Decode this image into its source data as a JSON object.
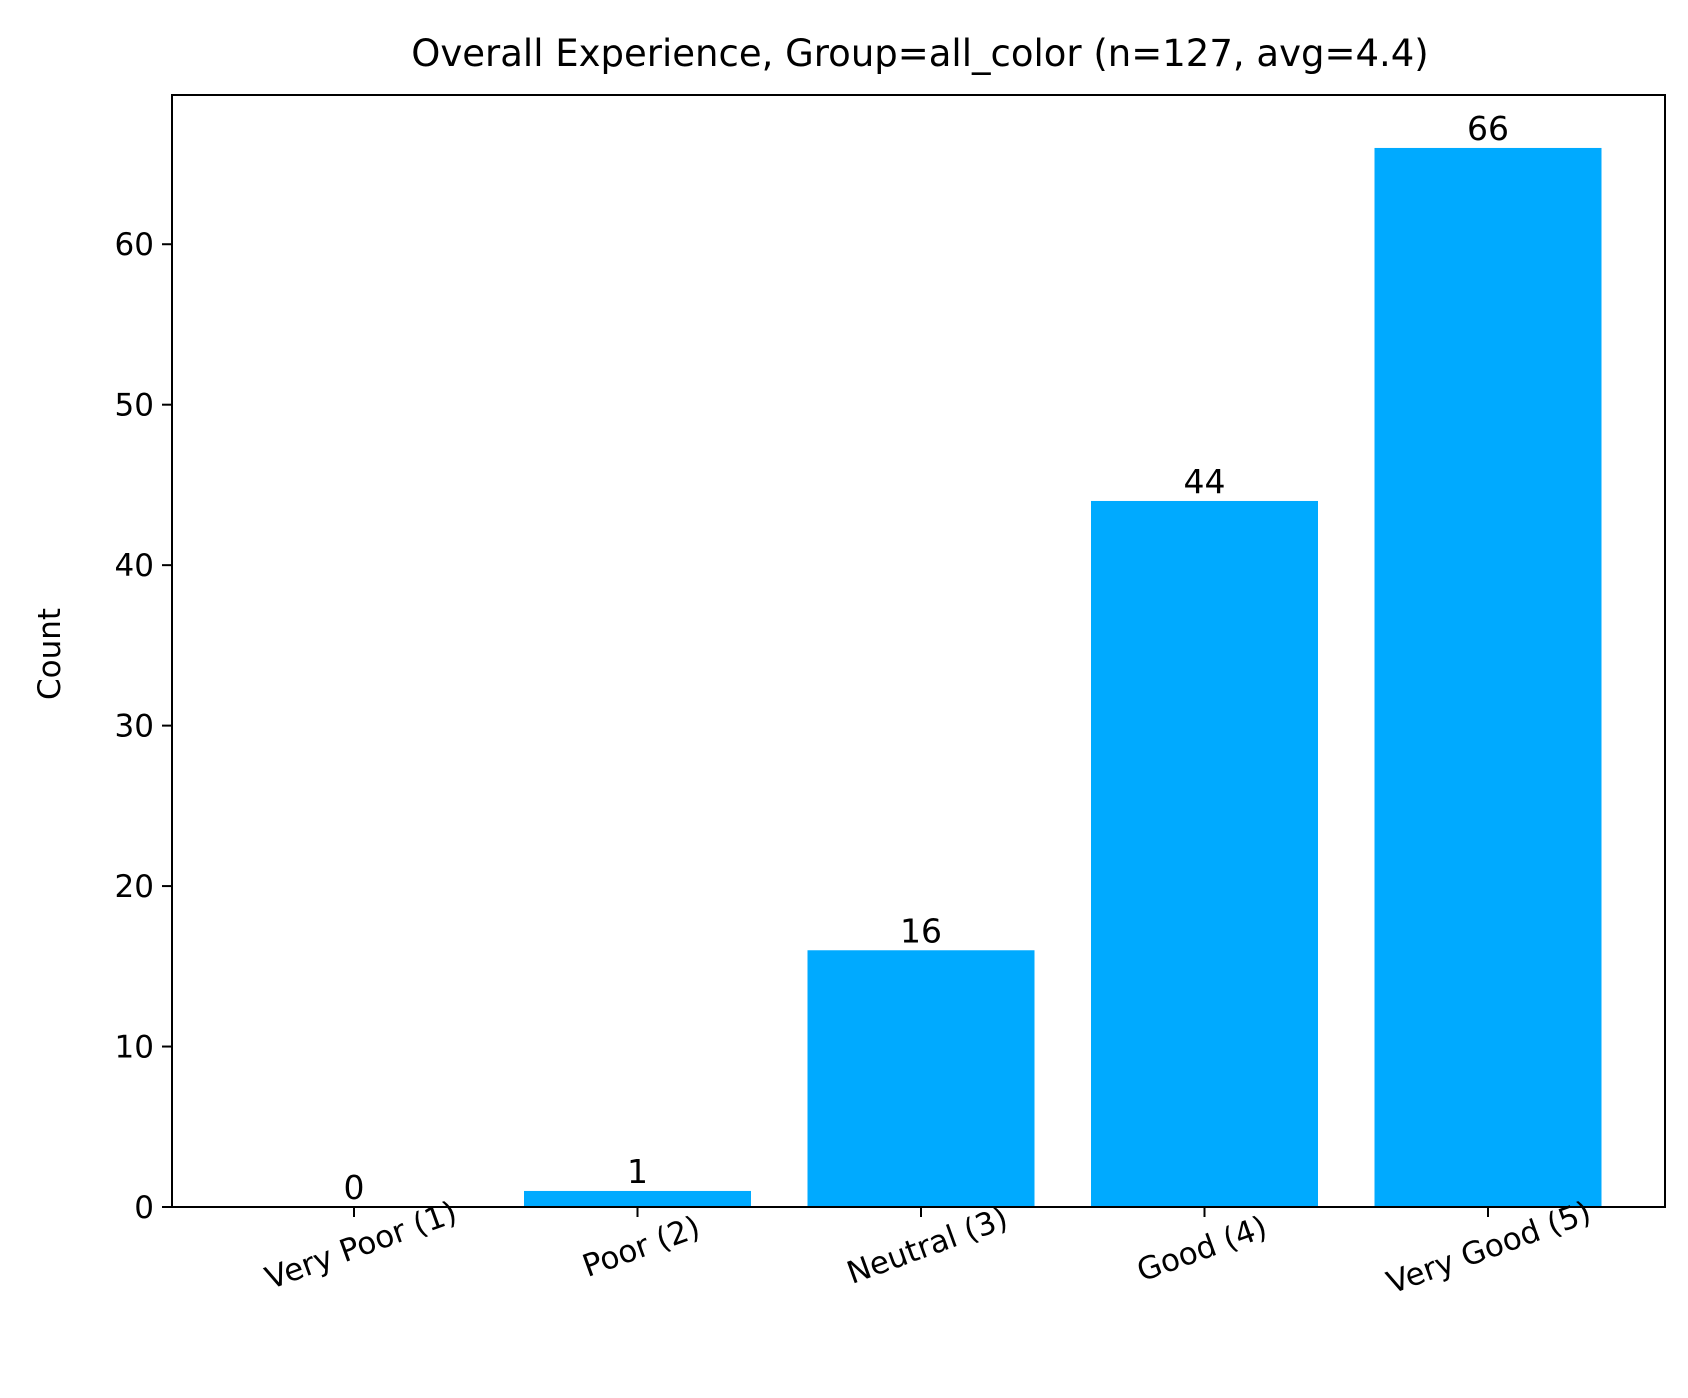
{
  "chart_data": {
    "type": "bar",
    "title": "Overall Experience, Group=all_color (n=127, avg=4.4)",
    "xlabel": "",
    "ylabel": "Count",
    "categories": [
      "Very Poor (1)",
      "Poor (2)",
      "Neutral (3)",
      "Good (4)",
      "Very Good (5)"
    ],
    "values": [
      0,
      1,
      16,
      44,
      66
    ],
    "data_labels": [
      "0",
      "1",
      "16",
      "44",
      "66"
    ],
    "ylim": [
      0,
      69.3
    ],
    "yticks": [
      0,
      10,
      20,
      30,
      40,
      50,
      60
    ],
    "ytick_labels": [
      "0",
      "10",
      "20",
      "30",
      "40",
      "50",
      "60"
    ],
    "bar_color": "#00aaff",
    "xtick_rotation_deg": 20,
    "grid": false,
    "legend": "none"
  }
}
